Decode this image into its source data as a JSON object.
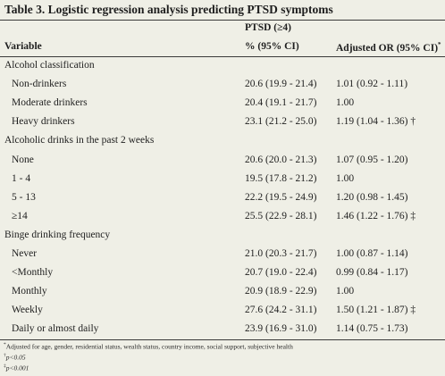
{
  "title": "Table 3. Logistic regression analysis predicting PTSD symptoms",
  "header": {
    "group_label": "PTSD (≥4)",
    "variable": "Variable",
    "percent_ci": "% (95% CI)",
    "adjusted_or": "Adjusted OR (95% CI)",
    "adjusted_or_mark": "*"
  },
  "rows": [
    {
      "label": "Alcohol classification",
      "section": true,
      "ptsd": "",
      "or": ""
    },
    {
      "label": "Non-drinkers",
      "section": false,
      "ptsd": "20.6 (19.9 - 21.4)",
      "or": "1.01 (0.92 - 1.11)"
    },
    {
      "label": "Moderate drinkers",
      "section": false,
      "ptsd": "20.4 (19.1 - 21.7)",
      "or": "1.00"
    },
    {
      "label": "Heavy drinkers",
      "section": false,
      "ptsd": "23.1 (21.2 - 25.0)",
      "or": "1.19 (1.04 - 1.36) †"
    },
    {
      "label": "Alcoholic drinks in the past 2 weeks",
      "section": true,
      "ptsd": "",
      "or": ""
    },
    {
      "label": "None",
      "section": false,
      "ptsd": "20.6 (20.0 - 21.3)",
      "or": "1.07 (0.95 - 1.20)"
    },
    {
      "label": "1 - 4",
      "section": false,
      "ptsd": "19.5 (17.8 - 21.2)",
      "or": "1.00"
    },
    {
      "label": "5 - 13",
      "section": false,
      "ptsd": "22.2 (19.5 - 24.9)",
      "or": "1.20 (0.98 - 1.45)"
    },
    {
      "label": "≥14",
      "section": false,
      "ptsd": "25.5 (22.9 - 28.1)",
      "or": "1.46 (1.22 - 1.76) ‡"
    },
    {
      "label": "Binge drinking frequency",
      "section": true,
      "ptsd": "",
      "or": ""
    },
    {
      "label": "Never",
      "section": false,
      "ptsd": "21.0 (20.3 - 21.7)",
      "or": "1.00 (0.87 - 1.14)"
    },
    {
      "label": "<Monthly",
      "section": false,
      "ptsd": "20.7 (19.0 - 22.4)",
      "or": "0.99 (0.84 - 1.17)"
    },
    {
      "label": "Monthly",
      "section": false,
      "ptsd": "20.9 (18.9 - 22.9)",
      "or": "1.00"
    },
    {
      "label": "Weekly",
      "section": false,
      "ptsd": "27.6 (24.2 - 31.1)",
      "or": "1.50 (1.21 - 1.87) ‡"
    },
    {
      "label": "Daily or almost daily",
      "section": false,
      "ptsd": "23.9 (16.9 - 31.0)",
      "or": "1.14 (0.75 - 1.73)"
    }
  ],
  "footnotes": [
    {
      "mark": "*",
      "text": "Adjusted for age, gender, residential status, wealth status, country income, social support, subjective health"
    },
    {
      "mark": "†",
      "text": "p<0.05"
    },
    {
      "mark": "‡",
      "text": "p<0.001"
    }
  ]
}
